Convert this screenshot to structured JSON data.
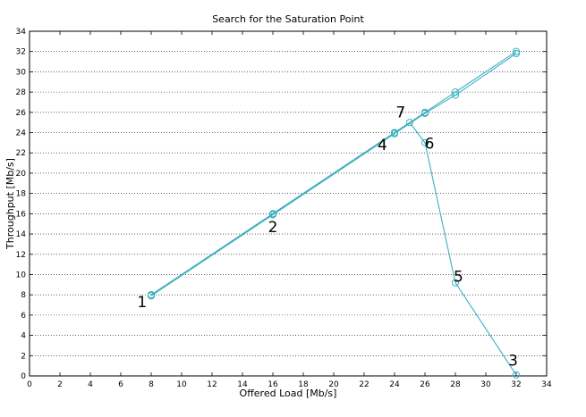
{
  "chart_data": {
    "type": "line",
    "title": "Search for the Saturation Point",
    "xlabel": "Offered Load [Mb/s]",
    "ylabel": "Throughput [Mb/s]",
    "xlim": [
      0,
      34
    ],
    "ylim": [
      0,
      34
    ],
    "x_ticks": [
      0,
      2,
      4,
      6,
      8,
      10,
      12,
      14,
      16,
      18,
      20,
      22,
      24,
      26,
      28,
      30,
      32,
      34
    ],
    "y_ticks": [
      0,
      2,
      4,
      6,
      8,
      10,
      12,
      14,
      16,
      18,
      20,
      22,
      24,
      26,
      28,
      30,
      32,
      34
    ],
    "grid": "horizontal dotted",
    "series_color": "#3cb0c0",
    "series": [
      {
        "x": [
          8,
          16,
          24,
          26,
          28,
          32
        ],
        "y": [
          8,
          16,
          24,
          26,
          28,
          32
        ]
      },
      {
        "x": [
          8,
          16,
          24,
          26,
          28,
          32
        ],
        "y": [
          7.9,
          15.9,
          23.9,
          25.9,
          27.7,
          31.8
        ]
      },
      {
        "x": [
          8,
          16,
          24,
          25,
          26,
          28,
          32
        ],
        "y": [
          8,
          16,
          24,
          25,
          23,
          9.2,
          0.1
        ]
      }
    ],
    "annotations": [
      {
        "label": "1",
        "x": 7.4,
        "y": 6.8
      },
      {
        "label": "2",
        "x": 16,
        "y": 14.2
      },
      {
        "label": "3",
        "x": 31.8,
        "y": 1.0
      },
      {
        "label": "4",
        "x": 23.2,
        "y": 22.3
      },
      {
        "label": "5",
        "x": 28.2,
        "y": 9.3
      },
      {
        "label": "6",
        "x": 26.3,
        "y": 22.4
      },
      {
        "label": "7",
        "x": 24.4,
        "y": 25.5
      }
    ]
  }
}
